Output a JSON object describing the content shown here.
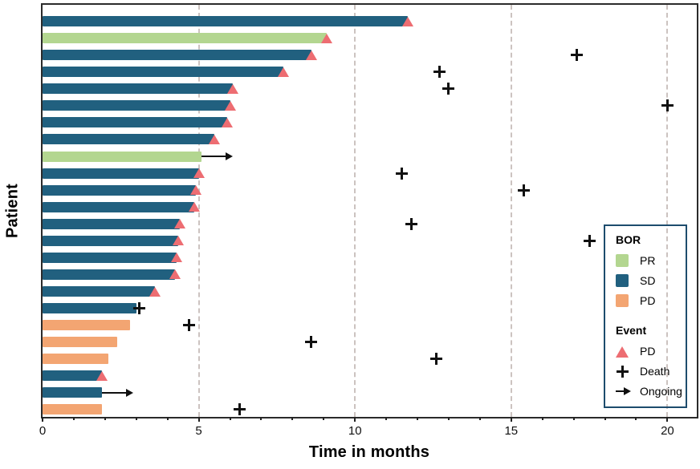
{
  "chart_data": {
    "type": "bar",
    "variant": "swimmer-plot",
    "xlabel": "Time in months",
    "ylabel": "Patient",
    "xlim": [
      0,
      20.94
    ],
    "x_major_ticks": [
      0,
      5,
      10,
      15,
      20
    ],
    "x_minor_tick_interval": 1,
    "gridlines_x": [
      5,
      10,
      15,
      20
    ],
    "grid": "dashed-vertical",
    "colors": {
      "PR": "#b3d690",
      "SD": "#21607f",
      "PD": "#f3a572",
      "pd_marker": "#ed6d72",
      "death_marker": "#101010",
      "grid": "#ccc3c0",
      "frame": "#2b2b2b",
      "legend_border": "#1d4c6d"
    },
    "ongoing_arrow_length_months": 1.0,
    "patients": [
      {
        "bor": "SD",
        "bar": 11.7,
        "pd": true,
        "death": null,
        "ongoing": false
      },
      {
        "bor": "PR",
        "bar": 9.1,
        "pd": true,
        "death": null,
        "ongoing": false
      },
      {
        "bor": "SD",
        "bar": 8.6,
        "pd": true,
        "death": 17.1,
        "ongoing": false
      },
      {
        "bor": "SD",
        "bar": 7.7,
        "pd": true,
        "death": 12.7,
        "ongoing": false
      },
      {
        "bor": "SD",
        "bar": 6.1,
        "pd": true,
        "death": 13.0,
        "ongoing": false
      },
      {
        "bor": "SD",
        "bar": 6.0,
        "pd": true,
        "death": 20.0,
        "ongoing": false
      },
      {
        "bor": "SD",
        "bar": 5.9,
        "pd": true,
        "death": null,
        "ongoing": false
      },
      {
        "bor": "SD",
        "bar": 5.5,
        "pd": true,
        "death": null,
        "ongoing": false
      },
      {
        "bor": "PR",
        "bar": 5.1,
        "pd": false,
        "death": null,
        "ongoing": true
      },
      {
        "bor": "SD",
        "bar": 5.0,
        "pd": true,
        "death": 11.5,
        "ongoing": false
      },
      {
        "bor": "SD",
        "bar": 4.9,
        "pd": true,
        "death": 15.4,
        "ongoing": false
      },
      {
        "bor": "SD",
        "bar": 4.85,
        "pd": true,
        "death": null,
        "ongoing": false
      },
      {
        "bor": "SD",
        "bar": 4.4,
        "pd": true,
        "death": 11.8,
        "ongoing": false
      },
      {
        "bor": "SD",
        "bar": 4.35,
        "pd": true,
        "death": 17.5,
        "ongoing": false
      },
      {
        "bor": "SD",
        "bar": 4.3,
        "pd": true,
        "death": null,
        "ongoing": false
      },
      {
        "bor": "SD",
        "bar": 4.25,
        "pd": true,
        "death": null,
        "ongoing": false
      },
      {
        "bor": "SD",
        "bar": 3.6,
        "pd": true,
        "death": null,
        "ongoing": false
      },
      {
        "bor": "SD",
        "bar": 3.0,
        "pd": false,
        "death": 3.1,
        "ongoing": false
      },
      {
        "bor": "PD",
        "bar": 2.8,
        "pd": false,
        "death": 4.7,
        "ongoing": false
      },
      {
        "bor": "PD",
        "bar": 2.4,
        "pd": false,
        "death": 8.6,
        "ongoing": false
      },
      {
        "bor": "PD",
        "bar": 2.1,
        "pd": false,
        "death": 12.6,
        "ongoing": false
      },
      {
        "bor": "SD",
        "bar": 1.9,
        "pd": true,
        "death": null,
        "ongoing": false
      },
      {
        "bor": "SD",
        "bar": 1.9,
        "pd": false,
        "death": null,
        "ongoing": true
      },
      {
        "bor": "PD",
        "bar": 1.9,
        "pd": false,
        "death": 6.3,
        "ongoing": false
      }
    ],
    "legend": {
      "bor_title": "BOR",
      "bor_items": [
        {
          "label": "PR",
          "color": "#b3d690"
        },
        {
          "label": "SD",
          "color": "#21607f"
        },
        {
          "label": "PD",
          "color": "#f3a572"
        }
      ],
      "event_title": "Event",
      "event_items": [
        {
          "label": "PD",
          "marker": "triangle",
          "color": "#ed6d72"
        },
        {
          "label": "Death",
          "marker": "plus",
          "color": "#101010"
        },
        {
          "label": "Ongoing",
          "marker": "arrow",
          "color": "#101010"
        }
      ]
    }
  }
}
